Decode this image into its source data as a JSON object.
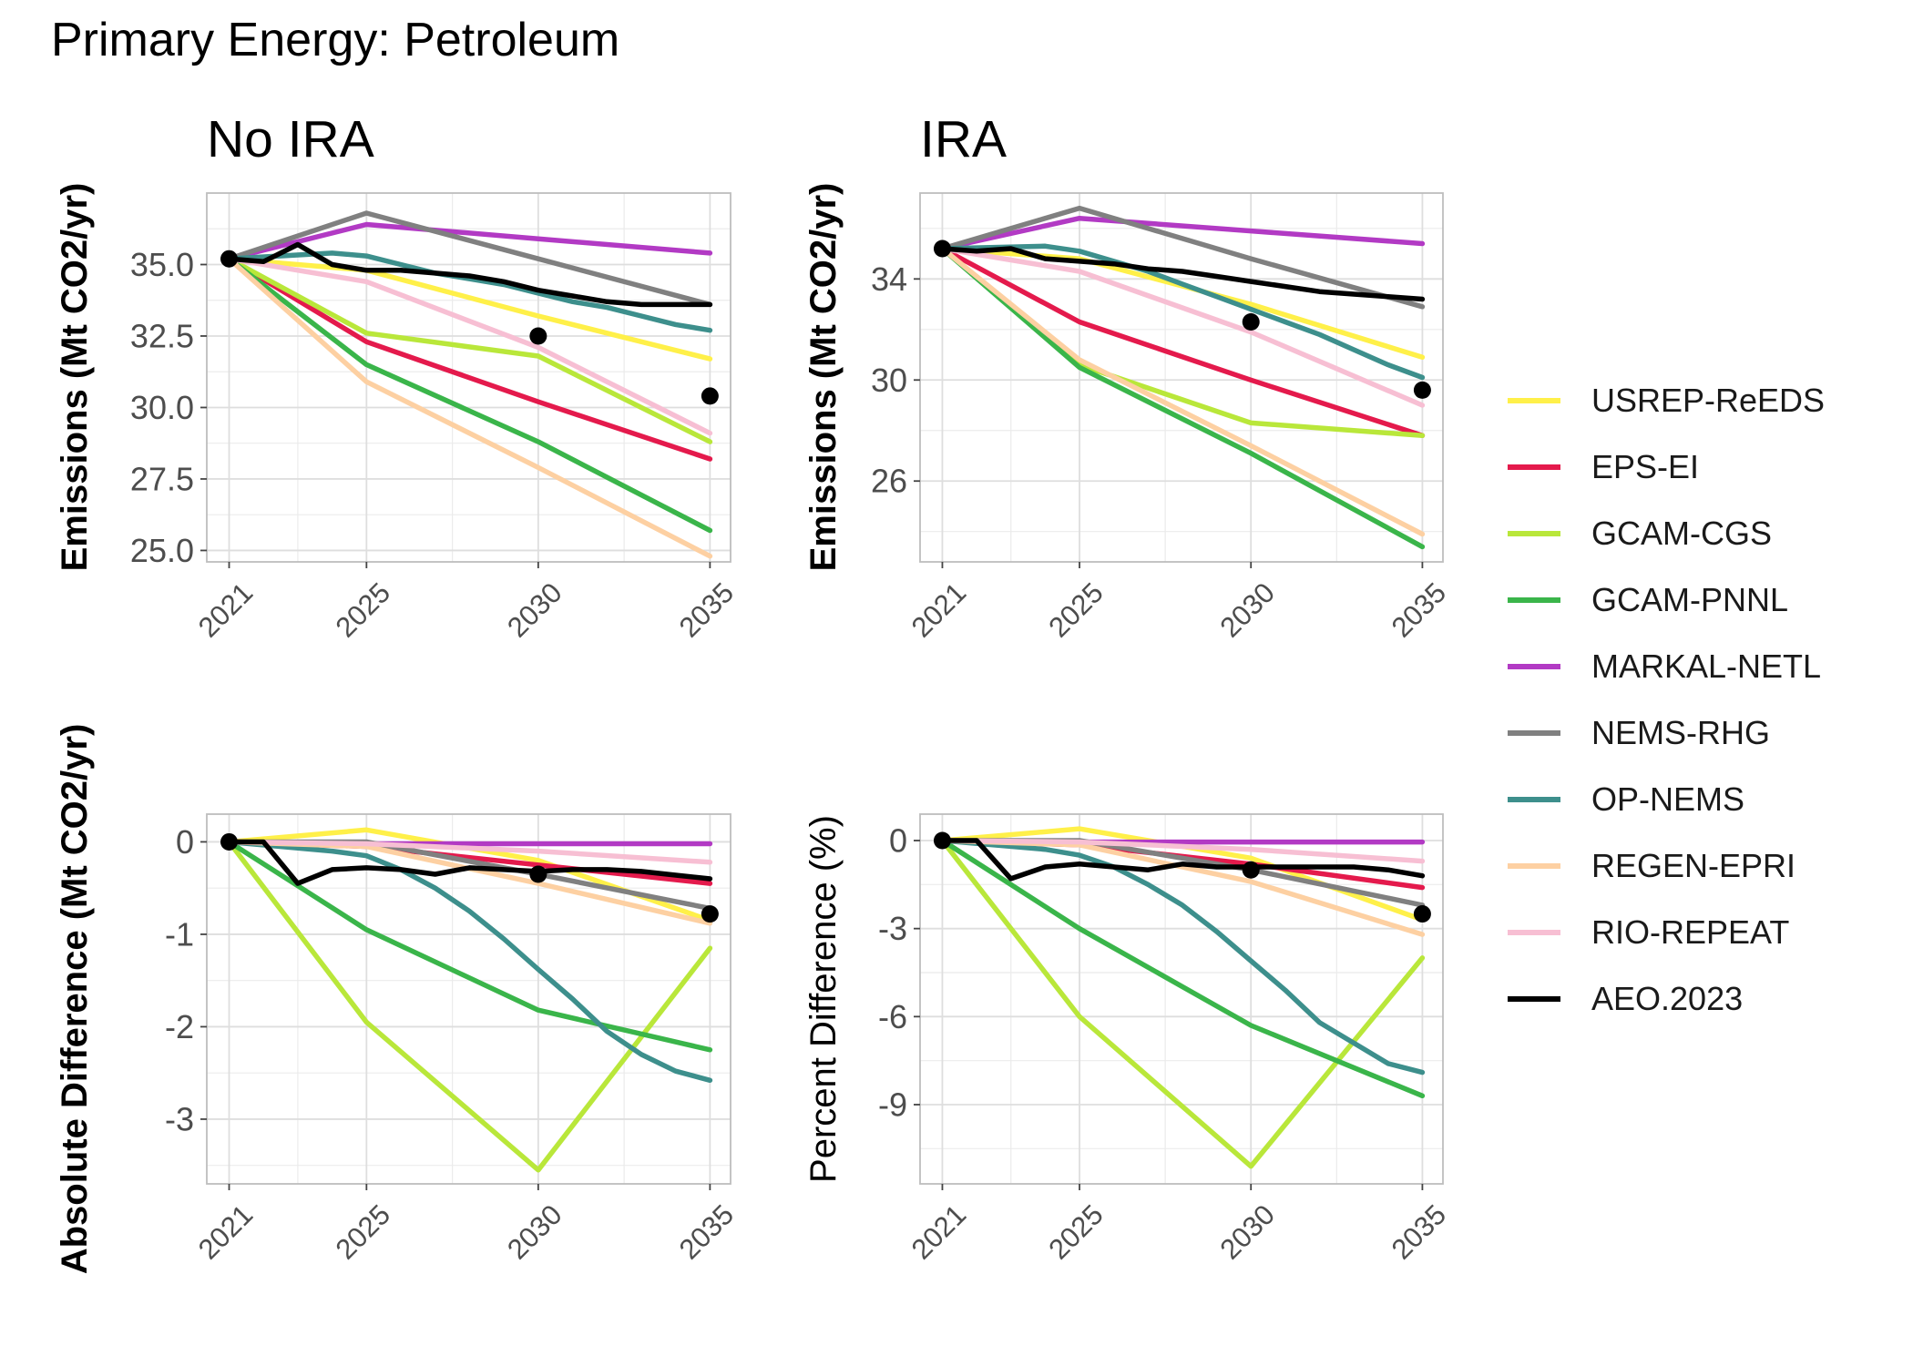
{
  "figure": {
    "title": "Primary Energy: Petroleum"
  },
  "colors": {
    "USREP-ReEDS": "#fff049",
    "EPS-EI": "#e41a4c",
    "GCAM-CGS": "#b9e73a",
    "GCAM-PNNL": "#3ab54a",
    "MARKAL-NETL": "#b23ac4",
    "NEMS-RHG": "#808080",
    "OP-NEMS": "#3d8f8c",
    "REGEN-EPRI": "#fdd0a2",
    "RIO-REPEAT": "#f7bfd3",
    "AEO.2023": "#000000"
  },
  "legend": [
    {
      "label": "USREP-ReEDS"
    },
    {
      "label": "EPS-EI"
    },
    {
      "label": "GCAM-CGS"
    },
    {
      "label": "GCAM-PNNL"
    },
    {
      "label": "MARKAL-NETL"
    },
    {
      "label": "NEMS-RHG"
    },
    {
      "label": "OP-NEMS"
    },
    {
      "label": "REGEN-EPRI"
    },
    {
      "label": "RIO-REPEAT"
    },
    {
      "label": "AEO.2023"
    }
  ],
  "chart_data": [
    {
      "type": "line",
      "title": "No IRA",
      "ylabel": "Emissions (Mt CO2/yr)",
      "xlim": [
        2021,
        2035
      ],
      "ylim": [
        24.6,
        37.5
      ],
      "x_ticks": [
        2021,
        2025,
        2030,
        2035
      ],
      "x_tick_labels": [
        "2021",
        "2025",
        "2030",
        "2035"
      ],
      "y_ticks": [
        25,
        27.5,
        30,
        32.5,
        35
      ],
      "y_tick_labels": [
        "25.0",
        "27.5",
        "30.0",
        "32.5",
        "35.0"
      ],
      "grid": true,
      "series": [
        {
          "name": "USREP-ReEDS",
          "x": [
            2021,
            2025,
            2030,
            2035
          ],
          "y": [
            35.2,
            34.8,
            33.2,
            31.7
          ]
        },
        {
          "name": "EPS-EI",
          "x": [
            2021,
            2025,
            2030,
            2035
          ],
          "y": [
            35.2,
            32.3,
            30.2,
            28.2
          ]
        },
        {
          "name": "GCAM-CGS",
          "x": [
            2021,
            2025,
            2030,
            2035
          ],
          "y": [
            35.2,
            32.6,
            31.8,
            28.8
          ]
        },
        {
          "name": "GCAM-PNNL",
          "x": [
            2021,
            2025,
            2030,
            2035
          ],
          "y": [
            35.2,
            31.5,
            28.8,
            25.7
          ]
        },
        {
          "name": "MARKAL-NETL",
          "x": [
            2021,
            2025,
            2030,
            2035
          ],
          "y": [
            35.2,
            36.4,
            35.9,
            35.4
          ]
        },
        {
          "name": "NEMS-RHG",
          "x": [
            2021,
            2025,
            2030,
            2035
          ],
          "y": [
            35.2,
            36.8,
            35.2,
            33.6
          ]
        },
        {
          "name": "OP-NEMS",
          "x": [
            2021,
            2024,
            2025,
            2026,
            2027,
            2028,
            2029,
            2030,
            2031,
            2032,
            2033,
            2034,
            2035
          ],
          "y": [
            35.2,
            35.4,
            35.3,
            35.0,
            34.7,
            34.5,
            34.3,
            34.0,
            33.7,
            33.5,
            33.2,
            32.9,
            32.7
          ]
        },
        {
          "name": "REGEN-EPRI",
          "x": [
            2021,
            2025,
            2030,
            2035
          ],
          "y": [
            35.2,
            30.9,
            27.9,
            24.8
          ]
        },
        {
          "name": "RIO-REPEAT",
          "x": [
            2021,
            2025,
            2030,
            2035
          ],
          "y": [
            35.2,
            34.4,
            32.1,
            29.1
          ]
        },
        {
          "name": "AEO.2023",
          "x": [
            2021,
            2022,
            2023,
            2024,
            2025,
            2026,
            2027,
            2028,
            2029,
            2030,
            2031,
            2032,
            2033,
            2034,
            2035
          ],
          "y": [
            35.2,
            35.1,
            35.7,
            35.0,
            34.8,
            34.8,
            34.7,
            34.6,
            34.4,
            34.1,
            33.9,
            33.7,
            33.6,
            33.6,
            33.6
          ]
        }
      ],
      "points": {
        "name": "AEO.2023",
        "x": [
          2021,
          2030,
          2035
        ],
        "y": [
          35.2,
          32.5,
          30.4
        ]
      }
    },
    {
      "type": "line",
      "title": "IRA",
      "ylabel": "Emissions (Mt CO2/yr)",
      "xlim": [
        2021,
        2035
      ],
      "ylim": [
        22.8,
        37.4
      ],
      "x_ticks": [
        2021,
        2025,
        2030,
        2035
      ],
      "x_tick_labels": [
        "2021",
        "2025",
        "2030",
        "2035"
      ],
      "y_ticks": [
        26,
        30,
        34
      ],
      "y_tick_labels": [
        "26",
        "30",
        "34"
      ],
      "grid": true,
      "series": [
        {
          "name": "USREP-ReEDS",
          "x": [
            2021,
            2025,
            2030,
            2035
          ],
          "y": [
            35.2,
            34.8,
            33.0,
            30.9
          ]
        },
        {
          "name": "EPS-EI",
          "x": [
            2021,
            2025,
            2030,
            2035
          ],
          "y": [
            35.2,
            32.3,
            30.0,
            27.8
          ]
        },
        {
          "name": "GCAM-CGS",
          "x": [
            2021,
            2025,
            2030,
            2035
          ],
          "y": [
            35.2,
            30.6,
            28.3,
            27.8
          ]
        },
        {
          "name": "GCAM-PNNL",
          "x": [
            2021,
            2025,
            2030,
            2035
          ],
          "y": [
            35.2,
            30.5,
            27.1,
            23.4
          ]
        },
        {
          "name": "MARKAL-NETL",
          "x": [
            2021,
            2025,
            2030,
            2035
          ],
          "y": [
            35.2,
            36.4,
            35.9,
            35.4
          ]
        },
        {
          "name": "NEMS-RHG",
          "x": [
            2021,
            2025,
            2030,
            2035
          ],
          "y": [
            35.2,
            36.8,
            34.8,
            32.9
          ]
        },
        {
          "name": "OP-NEMS",
          "x": [
            2021,
            2024,
            2025,
            2026,
            2027,
            2028,
            2029,
            2030,
            2031,
            2032,
            2033,
            2034,
            2035
          ],
          "y": [
            35.2,
            35.3,
            35.1,
            34.7,
            34.3,
            33.8,
            33.3,
            32.8,
            32.3,
            31.8,
            31.2,
            30.6,
            30.1
          ]
        },
        {
          "name": "REGEN-EPRI",
          "x": [
            2021,
            2025,
            2030,
            2035
          ],
          "y": [
            35.2,
            30.8,
            27.4,
            23.9
          ]
        },
        {
          "name": "RIO-REPEAT",
          "x": [
            2021,
            2025,
            2030,
            2035
          ],
          "y": [
            35.2,
            34.3,
            31.9,
            29.0
          ]
        },
        {
          "name": "AEO.2023",
          "x": [
            2021,
            2022,
            2023,
            2024,
            2025,
            2026,
            2027,
            2028,
            2029,
            2030,
            2031,
            2032,
            2033,
            2034,
            2035
          ],
          "y": [
            35.2,
            35.1,
            35.2,
            34.8,
            34.7,
            34.6,
            34.4,
            34.3,
            34.1,
            33.9,
            33.7,
            33.5,
            33.4,
            33.3,
            33.2
          ]
        }
      ],
      "points": {
        "name": "AEO.2023",
        "x": [
          2021,
          2030,
          2035
        ],
        "y": [
          35.2,
          32.3,
          29.6
        ]
      }
    },
    {
      "type": "line",
      "ylabel": "Absolute Difference (Mt CO2/yr)",
      "xlim": [
        2021,
        2035
      ],
      "ylim": [
        -3.7,
        0.3
      ],
      "x_ticks": [
        2021,
        2025,
        2030,
        2035
      ],
      "x_tick_labels": [
        "2021",
        "2025",
        "2030",
        "2035"
      ],
      "y_ticks": [
        -3,
        -2,
        -1,
        0
      ],
      "y_tick_labels": [
        "-3",
        "-2",
        "-1",
        "0"
      ],
      "grid": true,
      "series": [
        {
          "name": "USREP-ReEDS",
          "x": [
            2021,
            2025,
            2030,
            2035
          ],
          "y": [
            0,
            0.13,
            -0.2,
            -0.85
          ]
        },
        {
          "name": "EPS-EI",
          "x": [
            2021,
            2025,
            2030,
            2035
          ],
          "y": [
            0,
            -0.05,
            -0.25,
            -0.45
          ]
        },
        {
          "name": "GCAM-CGS",
          "x": [
            2021,
            2025,
            2030,
            2035
          ],
          "y": [
            0,
            -1.95,
            -3.55,
            -1.15
          ]
        },
        {
          "name": "GCAM-PNNL",
          "x": [
            2021,
            2025,
            2030,
            2035
          ],
          "y": [
            0,
            -0.95,
            -1.82,
            -2.25
          ]
        },
        {
          "name": "MARKAL-NETL",
          "x": [
            2021,
            2025,
            2030,
            2035
          ],
          "y": [
            0,
            -0.02,
            -0.02,
            -0.02
          ]
        },
        {
          "name": "NEMS-RHG",
          "x": [
            2021,
            2025,
            2030,
            2035
          ],
          "y": [
            0,
            0,
            -0.35,
            -0.72
          ]
        },
        {
          "name": "OP-NEMS",
          "x": [
            2021,
            2024,
            2025,
            2026,
            2027,
            2028,
            2029,
            2030,
            2031,
            2032,
            2033,
            2034,
            2035
          ],
          "y": [
            0,
            -0.1,
            -0.15,
            -0.3,
            -0.5,
            -0.75,
            -1.05,
            -1.38,
            -1.7,
            -2.05,
            -2.3,
            -2.48,
            -2.58
          ]
        },
        {
          "name": "REGEN-EPRI",
          "x": [
            2021,
            2025,
            2030,
            2035
          ],
          "y": [
            0,
            -0.05,
            -0.45,
            -0.88
          ]
        },
        {
          "name": "RIO-REPEAT",
          "x": [
            2021,
            2025,
            2030,
            2035
          ],
          "y": [
            0,
            -0.02,
            -0.1,
            -0.22
          ]
        },
        {
          "name": "AEO.2023",
          "x": [
            2021,
            2022,
            2023,
            2024,
            2025,
            2026,
            2027,
            2028,
            2029,
            2030,
            2031,
            2032,
            2033,
            2034,
            2035
          ],
          "y": [
            0,
            0,
            -0.45,
            -0.3,
            -0.28,
            -0.3,
            -0.35,
            -0.28,
            -0.3,
            -0.32,
            -0.3,
            -0.3,
            -0.32,
            -0.36,
            -0.4
          ]
        }
      ],
      "points": {
        "name": "AEO.2023",
        "x": [
          2021,
          2030,
          2035
        ],
        "y": [
          0,
          -0.35,
          -0.78
        ]
      }
    },
    {
      "type": "line",
      "ylabel": "Percent Difference (%)",
      "xlim": [
        2021,
        2035
      ],
      "ylim": [
        -11.7,
        0.9
      ],
      "x_ticks": [
        2021,
        2025,
        2030,
        2035
      ],
      "x_tick_labels": [
        "2021",
        "2025",
        "2030",
        "2035"
      ],
      "y_ticks": [
        -9,
        -6,
        -3,
        0
      ],
      "y_tick_labels": [
        "-9",
        "-6",
        "-3",
        "0"
      ],
      "grid": true,
      "series": [
        {
          "name": "USREP-ReEDS",
          "x": [
            2021,
            2025,
            2030,
            2035
          ],
          "y": [
            0,
            0.4,
            -0.6,
            -2.7
          ]
        },
        {
          "name": "EPS-EI",
          "x": [
            2021,
            2025,
            2030,
            2035
          ],
          "y": [
            0,
            -0.15,
            -0.8,
            -1.6
          ]
        },
        {
          "name": "GCAM-CGS",
          "x": [
            2021,
            2025,
            2030,
            2035
          ],
          "y": [
            0,
            -6.0,
            -11.1,
            -4.0
          ]
        },
        {
          "name": "GCAM-PNNL",
          "x": [
            2021,
            2025,
            2030,
            2035
          ],
          "y": [
            0,
            -3.0,
            -6.3,
            -8.7
          ]
        },
        {
          "name": "MARKAL-NETL",
          "x": [
            2021,
            2025,
            2030,
            2035
          ],
          "y": [
            0,
            -0.05,
            -0.05,
            -0.05
          ]
        },
        {
          "name": "NEMS-RHG",
          "x": [
            2021,
            2025,
            2030,
            2035
          ],
          "y": [
            0,
            0,
            -1.0,
            -2.2
          ]
        },
        {
          "name": "OP-NEMS",
          "x": [
            2021,
            2024,
            2025,
            2026,
            2027,
            2028,
            2029,
            2030,
            2031,
            2032,
            2033,
            2034,
            2035
          ],
          "y": [
            0,
            -0.3,
            -0.5,
            -0.9,
            -1.5,
            -2.2,
            -3.1,
            -4.1,
            -5.1,
            -6.2,
            -6.9,
            -7.6,
            -7.9
          ]
        },
        {
          "name": "REGEN-EPRI",
          "x": [
            2021,
            2025,
            2030,
            2035
          ],
          "y": [
            0,
            -0.15,
            -1.4,
            -3.2
          ]
        },
        {
          "name": "RIO-REPEAT",
          "x": [
            2021,
            2025,
            2030,
            2035
          ],
          "y": [
            0,
            -0.05,
            -0.3,
            -0.7
          ]
        },
        {
          "name": "AEO.2023",
          "x": [
            2021,
            2022,
            2023,
            2024,
            2025,
            2026,
            2027,
            2028,
            2029,
            2030,
            2031,
            2032,
            2033,
            2034,
            2035
          ],
          "y": [
            0,
            0,
            -1.3,
            -0.9,
            -0.8,
            -0.9,
            -1.0,
            -0.8,
            -0.9,
            -0.9,
            -0.9,
            -0.9,
            -0.9,
            -1.0,
            -1.2
          ]
        }
      ],
      "points": {
        "name": "AEO.2023",
        "x": [
          2021,
          2030,
          2035
        ],
        "y": [
          0,
          -1.0,
          -2.5
        ]
      }
    }
  ]
}
